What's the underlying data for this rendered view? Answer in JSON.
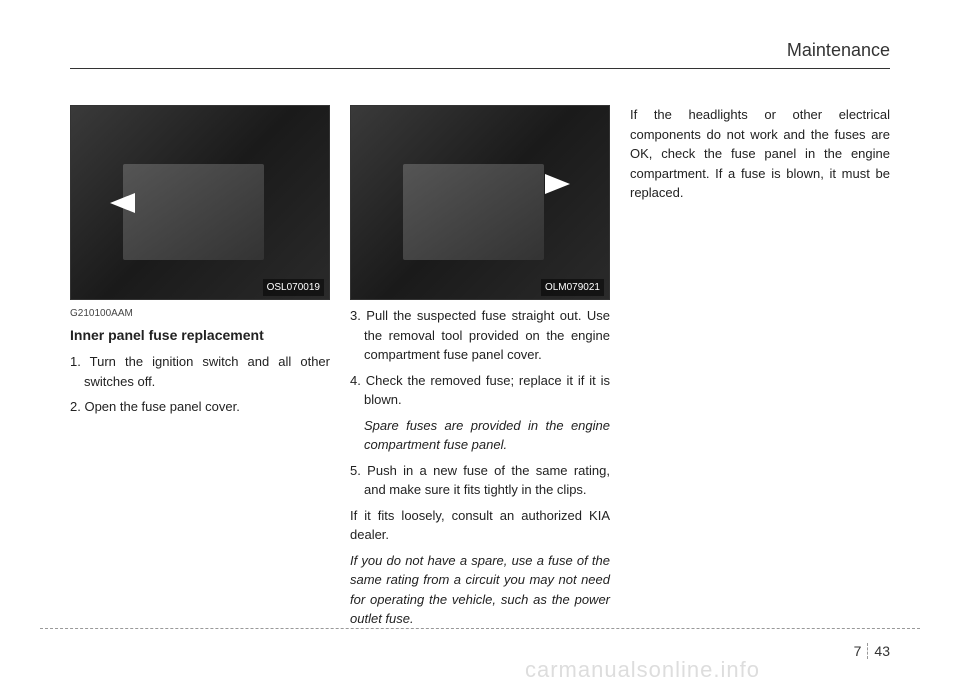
{
  "header": {
    "section": "Maintenance"
  },
  "col1": {
    "photo_label": "OSL070019",
    "ref": "G210100AAM",
    "subheading": "Inner panel fuse replacement",
    "step1": "1. Turn the ignition switch and all other switches off.",
    "step2": "2. Open the fuse panel cover."
  },
  "col2": {
    "photo_label": "OLM079021",
    "step3": "3. Pull the suspected fuse straight out. Use the removal tool provided on the engine compartment fuse panel cover.",
    "step4": "4. Check the removed fuse; replace it if it is blown.",
    "step4_note": "Spare fuses are provided in the engine compartment fuse panel.",
    "step5": "5. Push in a new fuse of the same rating, and make sure it fits tightly in the clips.",
    "loose": "If it fits loosely, consult an authorized KIA dealer.",
    "spare_note": "If you do not have a spare, use a fuse of the same rating from a circuit you may not need for operating the vehicle, such as the power outlet fuse."
  },
  "col3": {
    "para": "If the headlights or other electrical components do not work and the fuses are OK, check the fuse panel in the engine compartment. If a fuse is blown, it must be replaced."
  },
  "footer": {
    "section": "7",
    "page": "43",
    "watermark": "carmanualsonline.info"
  }
}
